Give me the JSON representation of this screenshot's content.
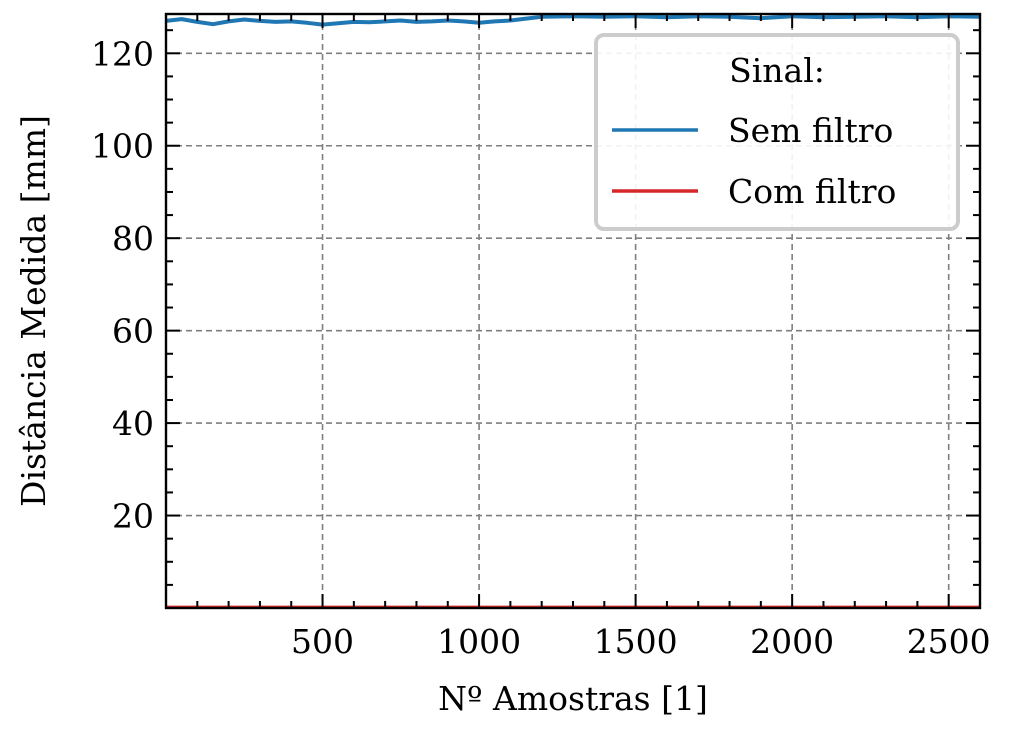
{
  "chart_data": {
    "type": "line",
    "xlabel": "Nº Amostras [1]",
    "ylabel": "Distância Medida [mm]",
    "xlim": [
      0,
      2600
    ],
    "ylim": [
      0,
      128.5
    ],
    "xticks": [
      500,
      1000,
      1500,
      2000,
      2500
    ],
    "yticks": [
      20,
      40,
      60,
      80,
      100,
      120
    ],
    "grid": true,
    "legend": {
      "title": "Sinal:",
      "placement": "top-right"
    },
    "series": [
      {
        "name": "Sem filtro",
        "color": "#1f77b4",
        "x": [
          0,
          50,
          100,
          150,
          200,
          250,
          300,
          350,
          400,
          450,
          500,
          550,
          600,
          650,
          700,
          750,
          800,
          850,
          900,
          950,
          1000,
          1050,
          1100,
          1150,
          1200,
          1300,
          1400,
          1500,
          1600,
          1700,
          1800,
          1900,
          2000,
          2100,
          2200,
          2300,
          2400,
          2500,
          2600
        ],
        "values": [
          127.0,
          127.4,
          126.8,
          126.3,
          126.9,
          127.3,
          127.0,
          126.8,
          126.9,
          126.6,
          126.2,
          126.5,
          126.8,
          126.7,
          126.9,
          127.1,
          126.8,
          126.9,
          127.1,
          126.9,
          126.6,
          126.9,
          127.1,
          127.5,
          127.9,
          128.0,
          127.9,
          128.0,
          127.8,
          128.0,
          127.9,
          127.6,
          128.0,
          127.8,
          127.9,
          128.0,
          127.8,
          128.0,
          127.9
        ]
      },
      {
        "name": "Com filtro",
        "color": "#d62728",
        "x": [
          0,
          2600
        ],
        "values": [
          0.2,
          0.2
        ]
      }
    ]
  }
}
